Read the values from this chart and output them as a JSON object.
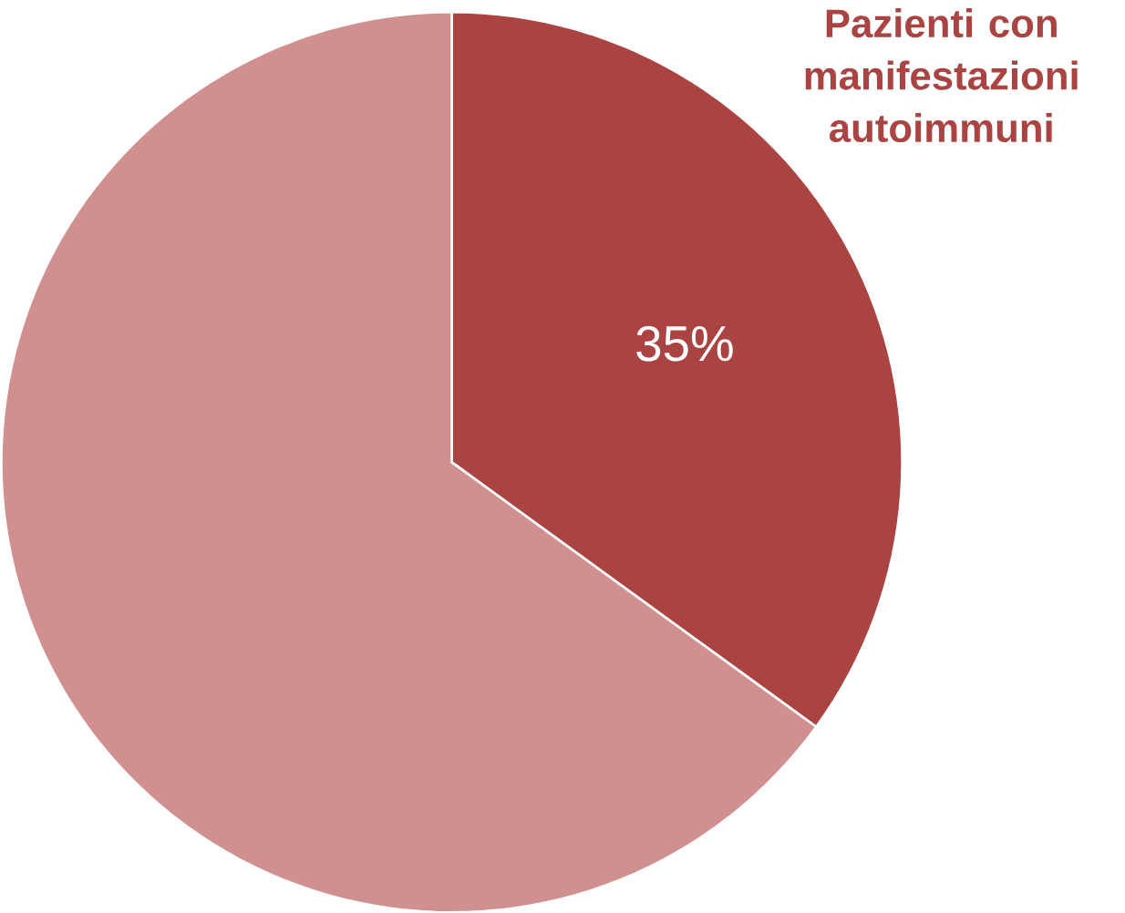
{
  "chart_data": {
    "type": "pie",
    "categories": [
      "Pazienti con manifestazioni autoimmuni",
      null
    ],
    "values": [
      35,
      65
    ],
    "colors": [
      "#a94442",
      "#d09090"
    ],
    "value_labels": [
      "35%",
      null
    ]
  }
}
